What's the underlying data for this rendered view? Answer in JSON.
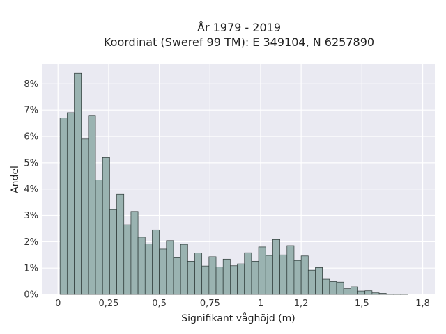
{
  "chart_data": {
    "type": "bar",
    "title_lines": [
      "År 1979 - 2019",
      "Koordinat (Sweref 99 TM): E 349104, N 6257890"
    ],
    "xlabel": "Signifikant våghöjd (m)",
    "ylabel": "Andel",
    "xlim": [
      -0.08,
      1.86
    ],
    "ylim": [
      0,
      0.0875
    ],
    "x_ticks": [
      0,
      0.25,
      0.5,
      0.75,
      1,
      1.2,
      1.5,
      1.8
    ],
    "x_tick_labels": [
      "0",
      "0,25",
      "0,5",
      "0,75",
      "1",
      "1,2",
      "1,5",
      "1,8"
    ],
    "y_ticks": [
      0,
      0.01,
      0.02,
      0.03,
      0.04,
      0.05,
      0.06,
      0.07,
      0.08
    ],
    "y_tick_labels": [
      "0%",
      "1%",
      "2%",
      "3%",
      "4%",
      "5%",
      "6%",
      "7%",
      "8%"
    ],
    "bin_width": 0.035,
    "bin_start": 0.01,
    "values": [
      0.067,
      0.069,
      0.084,
      0.059,
      0.068,
      0.0435,
      0.052,
      0.0322,
      0.038,
      0.0264,
      0.0315,
      0.0217,
      0.0192,
      0.0245,
      0.0172,
      0.0204,
      0.0139,
      0.019,
      0.0126,
      0.0157,
      0.0108,
      0.0143,
      0.0104,
      0.0134,
      0.0109,
      0.0116,
      0.0158,
      0.0126,
      0.018,
      0.0148,
      0.0208,
      0.015,
      0.0185,
      0.0129,
      0.0146,
      0.0092,
      0.0102,
      0.0058,
      0.0049,
      0.0047,
      0.0022,
      0.0029,
      0.0013,
      0.0014,
      0.0006,
      0.0004,
      0.0001,
      0.0001,
      0.0001
    ],
    "grid": true,
    "colors": {
      "bar_fill": "#9ab3b1",
      "bar_stroke": "#2a3634",
      "plot_bg": "#eaeaf2",
      "grid": "#ffffff"
    }
  }
}
